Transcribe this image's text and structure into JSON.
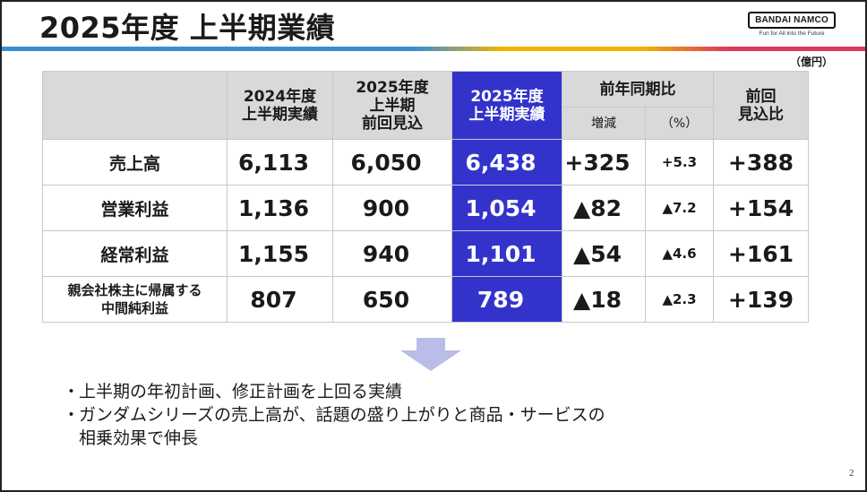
{
  "title": "2025年度 上半期業績",
  "logo": {
    "brand": "BANDAI NAMCO",
    "tagline": "Fun for All into the Future"
  },
  "unit": "（億円）",
  "table": {
    "headers": {
      "fy2024": "2024年度\n上半期実績",
      "fy2025_prev": "2025年度\n上半期\n前回見込",
      "fy2025_actual": "2025年度\n上半期実績",
      "yoy": "前年同期比",
      "yoy_diff": "増減",
      "yoy_pct": "（%）",
      "vs_prev": "前回\n見込比"
    },
    "rows": [
      {
        "label": "売上高",
        "fy2024": "6,113",
        "prev": "6,050",
        "actual": "6,438",
        "diff": "+325",
        "pct": "+5.3",
        "vs_prev": "+388"
      },
      {
        "label": "営業利益",
        "fy2024": "1,136",
        "prev": "900",
        "actual": "1,054",
        "diff": "▲82",
        "pct": "▲7.2",
        "vs_prev": "+154"
      },
      {
        "label": "経常利益",
        "fy2024": "1,155",
        "prev": "940",
        "actual": "1,101",
        "diff": "▲54",
        "pct": "▲4.6",
        "vs_prev": "+161"
      },
      {
        "label": "親会社株主に帰属する\n中間純利益",
        "fy2024": "807",
        "prev": "650",
        "actual": "789",
        "diff": "▲18",
        "pct": "▲2.3",
        "vs_prev": "+139"
      }
    ]
  },
  "icons": {
    "arrow": "down-arrow-icon"
  },
  "colors": {
    "highlight": "#3333cc",
    "header_bg": "#d9d9d9",
    "arrow": "#b9bde8"
  },
  "bullets": [
    {
      "text": "上半期の年初計画、修正計画を上回る実績"
    },
    {
      "text": "ガンダムシリーズの売上高が、話題の盛り上がりと商品・サービスの",
      "cont": "相乗効果で伸長"
    }
  ],
  "bullet_marker": "・",
  "page_number": "2"
}
